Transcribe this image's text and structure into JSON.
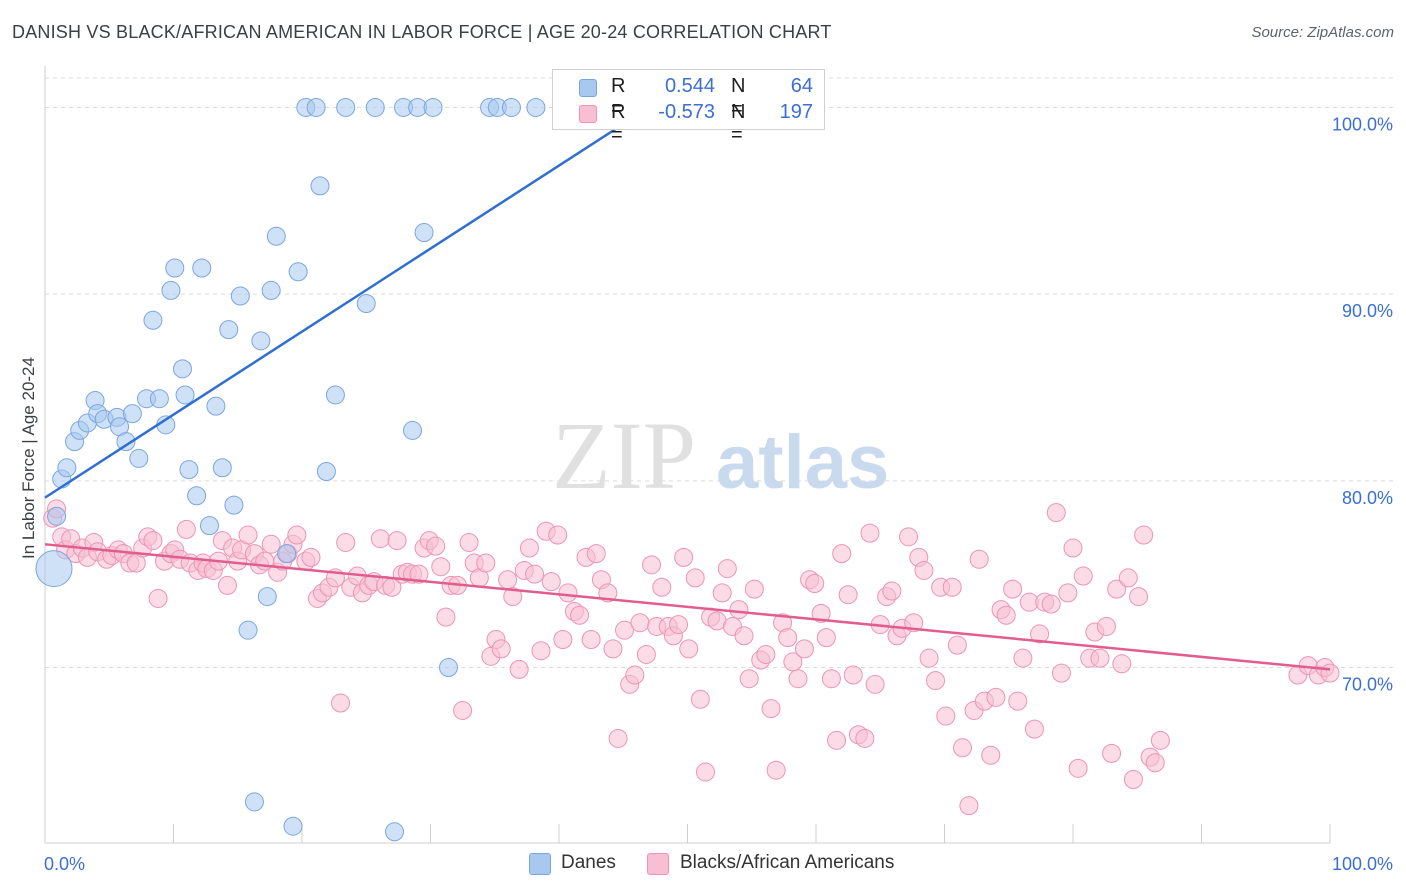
{
  "title": "DANISH VS BLACK/AFRICAN AMERICAN IN LABOR FORCE | AGE 20-24 CORRELATION CHART",
  "source": "Source: ZipAtlas.com",
  "watermark": {
    "zip": "ZIP",
    "atlas": "atlas"
  },
  "colors": {
    "danes_fill": "#a8c8f0",
    "danes_stroke": "#7aa6e0",
    "danes_line": "#2f6fd0",
    "black_fill": "#f8bfd2",
    "black_stroke": "#ee94b2",
    "black_line": "#e05d8e",
    "value_text": "#3b6fd1",
    "grid": "#dcdcdc"
  },
  "legend_top": {
    "rows": [
      {
        "r_label": "R =",
        "r_value": "0.544",
        "n_label": "N =",
        "n_value": "64"
      },
      {
        "r_label": "R =",
        "r_value": "-0.573",
        "n_label": "N =",
        "n_value": "197"
      }
    ]
  },
  "legend_bottom": {
    "danes": "Danes",
    "black": "Blacks/African Americans"
  },
  "chart_data": {
    "type": "scatter",
    "title": "DANISH VS BLACK/AFRICAN AMERICAN IN LABOR FORCE | AGE 20-24 CORRELATION CHART",
    "xlabel": "",
    "ylabel": "In Labor Force | Age 20-24",
    "x_tick_labels": [
      "0.0%",
      "100.0%"
    ],
    "y_tick_labels": [
      "70.0%",
      "80.0%",
      "90.0%",
      "100.0%"
    ],
    "y_ticks": [
      70,
      80,
      90,
      100
    ],
    "xlim": [
      0,
      100
    ],
    "ylim": [
      60.6,
      101.9
    ],
    "grid": true,
    "legend_position": "bottom",
    "series": [
      {
        "name": "Danes",
        "R": 0.544,
        "N": 64,
        "trend": {
          "x0": 0,
          "y0": 79.1,
          "x1": 47.0,
          "y1": 100.0
        },
        "points": [
          [
            0.7,
            75.3
          ],
          [
            0.9,
            78.1
          ],
          [
            1.3,
            80.1
          ],
          [
            1.7,
            80.7
          ],
          [
            2.3,
            82.1
          ],
          [
            2.7,
            82.7
          ],
          [
            3.3,
            83.1
          ],
          [
            3.9,
            84.3
          ],
          [
            4.1,
            83.6
          ],
          [
            4.6,
            83.3
          ],
          [
            5.6,
            83.4
          ],
          [
            5.8,
            82.9
          ],
          [
            6.3,
            82.1
          ],
          [
            6.8,
            83.6
          ],
          [
            7.3,
            81.2
          ],
          [
            7.9,
            84.4
          ],
          [
            8.4,
            88.6
          ],
          [
            8.9,
            84.4
          ],
          [
            9.4,
            83.0
          ],
          [
            9.8,
            90.2
          ],
          [
            10.1,
            91.4
          ],
          [
            10.7,
            86.0
          ],
          [
            10.9,
            84.6
          ],
          [
            11.2,
            80.6
          ],
          [
            11.8,
            79.2
          ],
          [
            12.2,
            91.4
          ],
          [
            12.8,
            77.6
          ],
          [
            13.3,
            84.0
          ],
          [
            13.8,
            80.7
          ],
          [
            14.3,
            88.1
          ],
          [
            14.7,
            78.7
          ],
          [
            15.2,
            89.9
          ],
          [
            15.8,
            72.0
          ],
          [
            16.3,
            62.8
          ],
          [
            16.8,
            87.5
          ],
          [
            17.3,
            73.8
          ],
          [
            17.6,
            90.2
          ],
          [
            18.0,
            93.1
          ],
          [
            18.8,
            76.1
          ],
          [
            19.3,
            61.5
          ],
          [
            19.7,
            91.2
          ],
          [
            20.3,
            100.0
          ],
          [
            21.1,
            100.0
          ],
          [
            21.4,
            95.8
          ],
          [
            21.9,
            80.5
          ],
          [
            22.6,
            84.6
          ],
          [
            23.4,
            100.0
          ],
          [
            25.0,
            89.5
          ],
          [
            25.7,
            100.0
          ],
          [
            27.2,
            61.2
          ],
          [
            27.9,
            100.0
          ],
          [
            28.6,
            82.7
          ],
          [
            29.0,
            100.0
          ],
          [
            29.5,
            93.3
          ],
          [
            30.2,
            100.0
          ],
          [
            31.4,
            70.0
          ],
          [
            34.6,
            100.0
          ],
          [
            35.2,
            100.0
          ],
          [
            36.3,
            100.0
          ],
          [
            38.2,
            100.0
          ],
          [
            42.0,
            100.0
          ],
          [
            44.6,
            100.0
          ],
          [
            46.7,
            100.0
          ],
          [
            48.6,
            100.0
          ]
        ]
      },
      {
        "name": "Blacks/African Americans",
        "R": -0.573,
        "N": 197,
        "trend": {
          "x0": 0,
          "y0": 76.6,
          "x1": 100,
          "y1": 69.9
        },
        "points": [
          [
            0.6,
            78.0
          ],
          [
            0.9,
            78.5
          ],
          [
            1.3,
            77.0
          ],
          [
            1.6,
            76.3
          ],
          [
            2.0,
            76.9
          ],
          [
            2.4,
            76.1
          ],
          [
            2.9,
            76.4
          ],
          [
            3.3,
            75.9
          ],
          [
            3.8,
            76.7
          ],
          [
            4.1,
            76.2
          ],
          [
            4.8,
            75.8
          ],
          [
            5.2,
            76.0
          ],
          [
            5.7,
            76.3
          ],
          [
            6.1,
            76.1
          ],
          [
            6.6,
            75.6
          ],
          [
            7.1,
            75.6
          ],
          [
            7.6,
            76.4
          ],
          [
            8.0,
            77.0
          ],
          [
            8.4,
            76.8
          ],
          [
            8.8,
            73.7
          ],
          [
            9.3,
            75.7
          ],
          [
            9.8,
            76.1
          ],
          [
            10.1,
            76.3
          ],
          [
            10.5,
            75.8
          ],
          [
            11.0,
            77.4
          ],
          [
            11.3,
            75.6
          ],
          [
            11.9,
            75.2
          ],
          [
            12.3,
            75.6
          ],
          [
            12.6,
            75.3
          ],
          [
            13.1,
            75.2
          ],
          [
            13.5,
            75.7
          ],
          [
            13.8,
            76.8
          ],
          [
            14.2,
            74.4
          ],
          [
            14.6,
            76.4
          ],
          [
            15.0,
            75.7
          ],
          [
            15.3,
            76.3
          ],
          [
            15.8,
            77.1
          ],
          [
            16.3,
            76.1
          ],
          [
            16.7,
            75.5
          ],
          [
            17.1,
            75.7
          ],
          [
            17.6,
            76.6
          ],
          [
            18.1,
            75.1
          ],
          [
            18.5,
            75.7
          ],
          [
            18.9,
            76.1
          ],
          [
            19.3,
            76.6
          ],
          [
            19.6,
            77.1
          ],
          [
            20.3,
            75.7
          ],
          [
            20.7,
            75.9
          ],
          [
            21.2,
            73.7
          ],
          [
            21.6,
            74.0
          ],
          [
            22.1,
            74.3
          ],
          [
            22.6,
            74.8
          ],
          [
            23.0,
            68.1
          ],
          [
            23.4,
            76.7
          ],
          [
            23.8,
            74.3
          ],
          [
            24.3,
            74.9
          ],
          [
            24.7,
            74.0
          ],
          [
            25.2,
            74.4
          ],
          [
            25.6,
            74.6
          ],
          [
            26.1,
            76.9
          ],
          [
            26.5,
            74.4
          ],
          [
            27.0,
            74.3
          ],
          [
            27.4,
            76.8
          ],
          [
            27.8,
            75.0
          ],
          [
            28.2,
            75.1
          ],
          [
            28.6,
            75.0
          ],
          [
            29.1,
            75.0
          ],
          [
            29.5,
            76.4
          ],
          [
            29.9,
            76.8
          ],
          [
            30.4,
            76.5
          ],
          [
            30.8,
            75.4
          ],
          [
            31.2,
            72.7
          ],
          [
            31.6,
            74.4
          ],
          [
            32.1,
            74.4
          ],
          [
            32.5,
            67.7
          ],
          [
            33.0,
            76.7
          ],
          [
            33.4,
            75.6
          ],
          [
            33.8,
            74.8
          ],
          [
            34.3,
            75.6
          ],
          [
            34.7,
            70.6
          ],
          [
            35.1,
            71.5
          ],
          [
            35.5,
            71.0
          ],
          [
            36.0,
            74.7
          ],
          [
            36.4,
            73.8
          ],
          [
            36.9,
            69.9
          ],
          [
            37.3,
            75.2
          ],
          [
            37.7,
            76.4
          ],
          [
            38.1,
            75.0
          ],
          [
            38.6,
            70.9
          ],
          [
            39.0,
            77.3
          ],
          [
            39.4,
            74.6
          ],
          [
            39.9,
            77.1
          ],
          [
            40.3,
            71.5
          ],
          [
            40.7,
            74.0
          ],
          [
            41.2,
            73.0
          ],
          [
            41.6,
            72.8
          ],
          [
            42.1,
            75.9
          ],
          [
            42.5,
            71.5
          ],
          [
            42.9,
            76.1
          ],
          [
            43.3,
            74.7
          ],
          [
            43.8,
            74.0
          ],
          [
            44.2,
            71.0
          ],
          [
            44.6,
            66.2
          ],
          [
            45.1,
            72.0
          ],
          [
            45.5,
            69.1
          ],
          [
            45.9,
            69.6
          ],
          [
            46.3,
            72.4
          ],
          [
            46.8,
            70.7
          ],
          [
            47.2,
            75.5
          ],
          [
            47.6,
            72.2
          ],
          [
            48.0,
            74.3
          ],
          [
            48.5,
            72.2
          ],
          [
            48.9,
            71.7
          ],
          [
            49.3,
            72.3
          ],
          [
            49.7,
            75.9
          ],
          [
            50.1,
            71.0
          ],
          [
            50.6,
            74.8
          ],
          [
            51.0,
            68.3
          ],
          [
            51.4,
            64.4
          ],
          [
            51.8,
            72.7
          ],
          [
            52.3,
            72.5
          ],
          [
            52.7,
            74.0
          ],
          [
            53.1,
            75.3
          ],
          [
            53.5,
            72.2
          ],
          [
            54.0,
            73.1
          ],
          [
            54.4,
            71.7
          ],
          [
            54.8,
            69.4
          ],
          [
            55.2,
            74.2
          ],
          [
            55.7,
            70.4
          ],
          [
            56.1,
            70.7
          ],
          [
            56.5,
            67.8
          ],
          [
            56.9,
            64.5
          ],
          [
            57.4,
            72.4
          ],
          [
            57.8,
            71.6
          ],
          [
            58.2,
            70.3
          ],
          [
            58.6,
            69.4
          ],
          [
            59.1,
            71.0
          ],
          [
            59.5,
            74.7
          ],
          [
            59.9,
            74.5
          ],
          [
            60.4,
            72.9
          ],
          [
            60.8,
            71.6
          ],
          [
            61.2,
            69.4
          ],
          [
            61.6,
            66.1
          ],
          [
            62.0,
            76.1
          ],
          [
            62.5,
            73.9
          ],
          [
            62.9,
            69.6
          ],
          [
            63.3,
            66.4
          ],
          [
            63.8,
            66.2
          ],
          [
            64.2,
            77.2
          ],
          [
            64.6,
            69.1
          ],
          [
            65.0,
            72.3
          ],
          [
            65.5,
            73.8
          ],
          [
            65.9,
            74.1
          ],
          [
            66.3,
            71.7
          ],
          [
            66.7,
            72.1
          ],
          [
            67.2,
            77.0
          ],
          [
            67.6,
            72.4
          ],
          [
            68.0,
            75.9
          ],
          [
            68.4,
            75.2
          ],
          [
            68.8,
            70.5
          ],
          [
            69.3,
            69.3
          ],
          [
            69.7,
            74.3
          ],
          [
            70.1,
            67.4
          ],
          [
            70.6,
            74.3
          ],
          [
            71.0,
            71.2
          ],
          [
            71.4,
            65.7
          ],
          [
            71.9,
            62.6
          ],
          [
            72.3,
            67.7
          ],
          [
            72.7,
            75.8
          ],
          [
            73.1,
            68.2
          ],
          [
            73.6,
            65.3
          ],
          [
            74.0,
            68.4
          ],
          [
            74.4,
            73.1
          ],
          [
            74.8,
            72.8
          ],
          [
            75.3,
            74.2
          ],
          [
            75.7,
            68.2
          ],
          [
            76.1,
            70.5
          ],
          [
            76.6,
            73.5
          ],
          [
            77.0,
            66.7
          ],
          [
            77.4,
            71.8
          ],
          [
            77.8,
            73.5
          ],
          [
            78.3,
            73.4
          ],
          [
            78.7,
            78.3
          ],
          [
            79.1,
            69.7
          ],
          [
            79.6,
            74.0
          ],
          [
            80.0,
            76.4
          ],
          [
            80.4,
            64.6
          ],
          [
            80.8,
            74.9
          ],
          [
            81.3,
            70.5
          ],
          [
            81.7,
            71.9
          ],
          [
            82.1,
            70.5
          ],
          [
            82.6,
            72.2
          ],
          [
            83.0,
            65.4
          ],
          [
            83.4,
            74.2
          ],
          [
            83.8,
            70.2
          ],
          [
            84.3,
            74.8
          ],
          [
            84.7,
            64.0
          ],
          [
            85.1,
            73.8
          ],
          [
            85.5,
            77.1
          ],
          [
            86.0,
            65.2
          ],
          [
            86.4,
            64.9
          ],
          [
            86.8,
            66.1
          ],
          [
            97.5,
            69.6
          ],
          [
            98.3,
            70.1
          ],
          [
            99.1,
            69.6
          ],
          [
            99.6,
            70.0
          ],
          [
            100.0,
            69.7
          ]
        ]
      }
    ]
  }
}
